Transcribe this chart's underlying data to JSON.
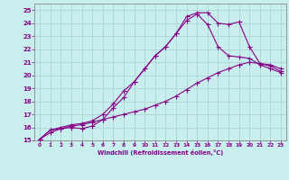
{
  "xlabel": "Windchill (Refroidissement éolien,°C)",
  "bg_color": "#c8eeee",
  "grid_color": "#b0d8d8",
  "line_color": "#880088",
  "spine_color": "#888888",
  "xlim": [
    -0.5,
    23.5
  ],
  "ylim": [
    15,
    25.5
  ],
  "xticks": [
    0,
    1,
    2,
    3,
    4,
    5,
    6,
    7,
    8,
    9,
    10,
    11,
    12,
    13,
    14,
    15,
    16,
    17,
    18,
    19,
    20,
    21,
    22,
    23
  ],
  "yticks": [
    15,
    16,
    17,
    18,
    19,
    20,
    21,
    22,
    23,
    24,
    25
  ],
  "line1_x": [
    0,
    1,
    2,
    3,
    4,
    5,
    6,
    7,
    8,
    9,
    10,
    11,
    12,
    13,
    14,
    15,
    16,
    17,
    18,
    19,
    20,
    21,
    22,
    23
  ],
  "line1_y": [
    15.1,
    15.8,
    15.9,
    16.0,
    15.9,
    16.1,
    16.6,
    17.5,
    18.3,
    19.5,
    20.5,
    21.5,
    22.2,
    23.2,
    24.5,
    24.8,
    24.8,
    24.0,
    23.9,
    24.1,
    22.2,
    20.9,
    20.8,
    20.5
  ],
  "line2_x": [
    0,
    1,
    2,
    3,
    4,
    5,
    6,
    7,
    8,
    9,
    10,
    11,
    12,
    13,
    14,
    15,
    16,
    17,
    18,
    19,
    20,
    21,
    22,
    23
  ],
  "line2_y": [
    15.1,
    15.8,
    16.0,
    16.2,
    16.3,
    16.5,
    17.0,
    17.8,
    18.8,
    19.5,
    20.5,
    21.5,
    22.2,
    23.2,
    24.2,
    24.7,
    23.9,
    22.2,
    21.5,
    21.4,
    21.3,
    20.8,
    20.5,
    20.2
  ],
  "line3_x": [
    0,
    1,
    2,
    3,
    4,
    5,
    6,
    7,
    8,
    9,
    10,
    11,
    12,
    13,
    14,
    15,
    16,
    17,
    18,
    19,
    20,
    21,
    22,
    23
  ],
  "line3_y": [
    15.1,
    15.6,
    15.9,
    16.1,
    16.2,
    16.4,
    16.6,
    16.8,
    17.0,
    17.2,
    17.4,
    17.7,
    18.0,
    18.4,
    18.9,
    19.4,
    19.8,
    20.2,
    20.5,
    20.8,
    21.0,
    20.9,
    20.7,
    20.3
  ]
}
